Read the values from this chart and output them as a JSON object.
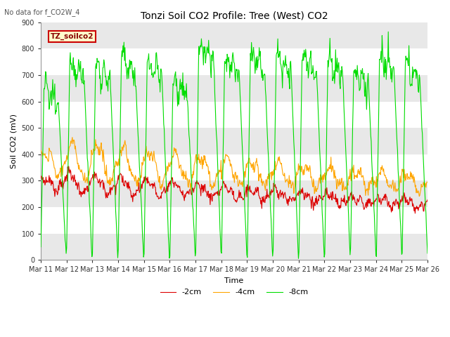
{
  "title": "Tonzi Soil CO2 Profile: Tree (West) CO2",
  "subtitle": "No data for f_CO2W_4",
  "ylabel": "Soil CO2 (mV)",
  "xlabel": "Time",
  "legend_label": "TZ_soilco2",
  "series_labels": [
    "-2cm",
    "-4cm",
    "-8cm"
  ],
  "series_colors": [
    "#dd0000",
    "#ffa500",
    "#00dd00"
  ],
  "ylim": [
    0,
    900
  ],
  "background_color": "#ffffff",
  "plot_bg_color": "#ffffff",
  "band_color": "#e8e8e8",
  "grid_color": "#ffffff",
  "xtick_labels": [
    "Mar 11",
    "Mar 12",
    "Mar 13",
    "Mar 14",
    "Mar 15",
    "Mar 16",
    "Mar 17",
    "Mar 18",
    "Mar 19",
    "Mar 20",
    "Mar 21",
    "Mar 22",
    "Mar 23",
    "Mar 24",
    "Mar 25",
    "Mar 26"
  ],
  "ytick_values": [
    0,
    100,
    200,
    300,
    400,
    500,
    600,
    700,
    800,
    900
  ],
  "legend_box_color": "#ffffcc",
  "legend_box_edge": "#cc0000",
  "legend_text_color": "#880000",
  "title_fontsize": 10,
  "axis_fontsize": 8,
  "tick_fontsize": 7,
  "n_points": 750
}
